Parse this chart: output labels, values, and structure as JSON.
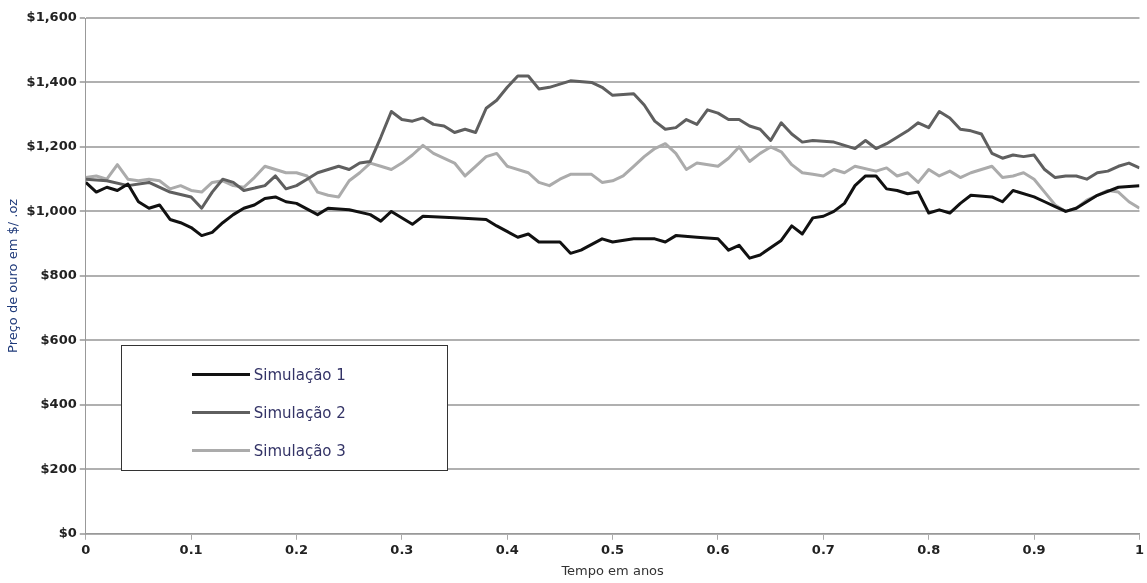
{
  "chart_data": {
    "type": "line",
    "xlabel": "Tempo em anos",
    "ylabel": "Preço de ouro em $/ .oz",
    "xlim": [
      0,
      1
    ],
    "xticks": [
      0,
      0.1,
      0.2,
      0.3,
      0.4,
      0.5,
      0.6,
      0.7,
      0.8,
      0.9,
      1
    ],
    "ylim": [
      0,
      1600
    ],
    "yticks": [
      {
        "value": 0,
        "label": "$0"
      },
      {
        "value": 200,
        "label": "$200"
      },
      {
        "value": 400,
        "label": "$400"
      },
      {
        "value": 600,
        "label": "$600"
      },
      {
        "value": 800,
        "label": "$800"
      },
      {
        "value": 1000,
        "label": "$1,000"
      },
      {
        "value": 1200,
        "label": "$1,200"
      },
      {
        "value": 1400,
        "label": "$1,400"
      },
      {
        "value": 1600,
        "label": "$1,600"
      }
    ],
    "grid": "y",
    "legend": "bottom left",
    "marker": "none",
    "line_style": "solid",
    "series": [
      {
        "name": "Simulação 1",
        "color": "#111111",
        "x": [
          0,
          0.01,
          0.02,
          0.03,
          0.04,
          0.05,
          0.06,
          0.07,
          0.08,
          0.09,
          0.1,
          0.11,
          0.12,
          0.13,
          0.14,
          0.15,
          0.16,
          0.17,
          0.18,
          0.19,
          0.2,
          0.22,
          0.23,
          0.25,
          0.27,
          0.28,
          0.29,
          0.31,
          0.32,
          0.35,
          0.38,
          0.39,
          0.41,
          0.42,
          0.43,
          0.45,
          0.46,
          0.47,
          0.49,
          0.5,
          0.52,
          0.54,
          0.55,
          0.56,
          0.58,
          0.6,
          0.61,
          0.62,
          0.63,
          0.64,
          0.66,
          0.67,
          0.68,
          0.69,
          0.7,
          0.71,
          0.72,
          0.73,
          0.74,
          0.75,
          0.76,
          0.77,
          0.78,
          0.79,
          0.8,
          0.81,
          0.82,
          0.83,
          0.84,
          0.86,
          0.87,
          0.88,
          0.9,
          0.91,
          0.92,
          0.93,
          0.94,
          0.96,
          0.98,
          1
        ],
        "values": [
          1090,
          1060,
          1075,
          1065,
          1085,
          1030,
          1010,
          1020,
          975,
          965,
          950,
          925,
          935,
          965,
          990,
          1010,
          1020,
          1040,
          1045,
          1030,
          1025,
          990,
          1010,
          1005,
          990,
          970,
          1000,
          960,
          985,
          980,
          975,
          955,
          920,
          930,
          905,
          905,
          870,
          880,
          915,
          905,
          915,
          915,
          905,
          925,
          920,
          915,
          880,
          895,
          855,
          865,
          910,
          955,
          930,
          980,
          985,
          1000,
          1025,
          1080,
          1110,
          1110,
          1070,
          1065,
          1055,
          1060,
          995,
          1005,
          995,
          1025,
          1050,
          1045,
          1030,
          1065,
          1045,
          1030,
          1015,
          1000,
          1010,
          1050,
          1075,
          1080
        ]
      },
      {
        "name": "Simulação 2",
        "color": "#5f5f5f",
        "x": [
          0,
          0.02,
          0.04,
          0.06,
          0.08,
          0.1,
          0.11,
          0.12,
          0.13,
          0.14,
          0.15,
          0.17,
          0.18,
          0.19,
          0.2,
          0.21,
          0.22,
          0.23,
          0.24,
          0.25,
          0.26,
          0.27,
          0.28,
          0.29,
          0.3,
          0.31,
          0.32,
          0.33,
          0.34,
          0.35,
          0.36,
          0.37,
          0.38,
          0.39,
          0.4,
          0.41,
          0.42,
          0.43,
          0.44,
          0.45,
          0.46,
          0.48,
          0.49,
          0.5,
          0.52,
          0.53,
          0.54,
          0.55,
          0.56,
          0.57,
          0.58,
          0.59,
          0.6,
          0.61,
          0.62,
          0.63,
          0.64,
          0.65,
          0.66,
          0.67,
          0.68,
          0.69,
          0.71,
          0.72,
          0.73,
          0.74,
          0.75,
          0.76,
          0.78,
          0.79,
          0.8,
          0.81,
          0.82,
          0.83,
          0.84,
          0.85,
          0.86,
          0.87,
          0.88,
          0.89,
          0.9,
          0.91,
          0.92,
          0.93,
          0.94,
          0.95,
          0.96,
          0.97,
          0.98,
          0.99,
          1
        ],
        "values": [
          1100,
          1095,
          1080,
          1090,
          1060,
          1045,
          1010,
          1060,
          1100,
          1090,
          1065,
          1080,
          1110,
          1070,
          1080,
          1100,
          1120,
          1130,
          1140,
          1130,
          1150,
          1155,
          1230,
          1310,
          1285,
          1280,
          1290,
          1270,
          1265,
          1245,
          1255,
          1245,
          1320,
          1345,
          1385,
          1420,
          1420,
          1380,
          1385,
          1395,
          1405,
          1400,
          1385,
          1360,
          1365,
          1330,
          1280,
          1255,
          1260,
          1285,
          1270,
          1315,
          1305,
          1285,
          1285,
          1265,
          1255,
          1220,
          1275,
          1240,
          1215,
          1220,
          1215,
          1205,
          1195,
          1220,
          1195,
          1210,
          1250,
          1275,
          1260,
          1310,
          1290,
          1255,
          1250,
          1240,
          1180,
          1165,
          1175,
          1170,
          1175,
          1130,
          1105,
          1110,
          1110,
          1100,
          1120,
          1125,
          1140,
          1150,
          1135
        ]
      },
      {
        "name": "Simulação 3",
        "color": "#ababab",
        "x": [
          0,
          0.01,
          0.02,
          0.03,
          0.04,
          0.05,
          0.06,
          0.07,
          0.08,
          0.09,
          0.1,
          0.11,
          0.12,
          0.13,
          0.14,
          0.15,
          0.16,
          0.17,
          0.18,
          0.19,
          0.2,
          0.21,
          0.22,
          0.23,
          0.24,
          0.25,
          0.26,
          0.27,
          0.28,
          0.29,
          0.3,
          0.31,
          0.32,
          0.33,
          0.35,
          0.36,
          0.37,
          0.38,
          0.39,
          0.4,
          0.42,
          0.43,
          0.44,
          0.45,
          0.46,
          0.48,
          0.49,
          0.5,
          0.51,
          0.52,
          0.53,
          0.54,
          0.55,
          0.56,
          0.57,
          0.58,
          0.6,
          0.61,
          0.62,
          0.63,
          0.64,
          0.65,
          0.66,
          0.67,
          0.68,
          0.69,
          0.7,
          0.71,
          0.72,
          0.73,
          0.75,
          0.76,
          0.77,
          0.78,
          0.79,
          0.8,
          0.81,
          0.82,
          0.83,
          0.84,
          0.86,
          0.87,
          0.88,
          0.89,
          0.9,
          0.91,
          0.92,
          0.93,
          0.94,
          0.95,
          0.96,
          0.97,
          0.98,
          0.99,
          1
        ],
        "values": [
          1105,
          1110,
          1100,
          1145,
          1100,
          1095,
          1100,
          1095,
          1070,
          1080,
          1065,
          1060,
          1090,
          1095,
          1080,
          1075,
          1105,
          1140,
          1130,
          1120,
          1120,
          1110,
          1060,
          1050,
          1045,
          1095,
          1120,
          1150,
          1140,
          1130,
          1150,
          1175,
          1205,
          1180,
          1150,
          1110,
          1140,
          1170,
          1180,
          1140,
          1120,
          1090,
          1080,
          1100,
          1115,
          1115,
          1090,
          1095,
          1110,
          1140,
          1170,
          1195,
          1210,
          1180,
          1130,
          1150,
          1140,
          1165,
          1200,
          1155,
          1180,
          1200,
          1185,
          1145,
          1120,
          1115,
          1110,
          1130,
          1120,
          1140,
          1125,
          1135,
          1110,
          1120,
          1090,
          1130,
          1110,
          1125,
          1105,
          1120,
          1140,
          1105,
          1110,
          1120,
          1100,
          1060,
          1020,
          1000,
          1010,
          1035,
          1050,
          1065,
          1060,
          1030,
          1010
        ]
      }
    ]
  }
}
